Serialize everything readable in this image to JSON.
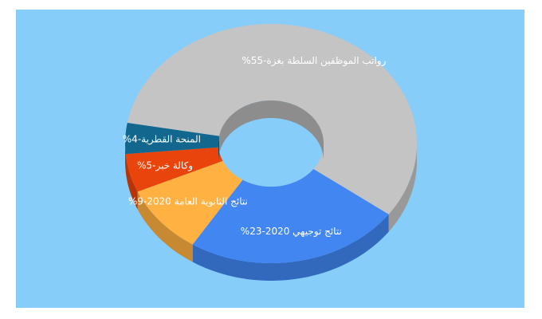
{
  "chart_data": {
    "type": "pie3d",
    "values": [
      55,
      23,
      9,
      5,
      4
    ],
    "value_labels": [
      "رواتب الموظفين السلطة بغزة-55%",
      "نتائج توجيهي 2020-23%",
      "نتائج الثانوية العامة 2020-9%",
      "وكالة خبر-5%",
      "المنحة القطرية-4%"
    ],
    "colors": [
      "#c4c4c4",
      "#4286f2",
      "#ffb142",
      "#e8440b",
      "#12678f"
    ]
  }
}
